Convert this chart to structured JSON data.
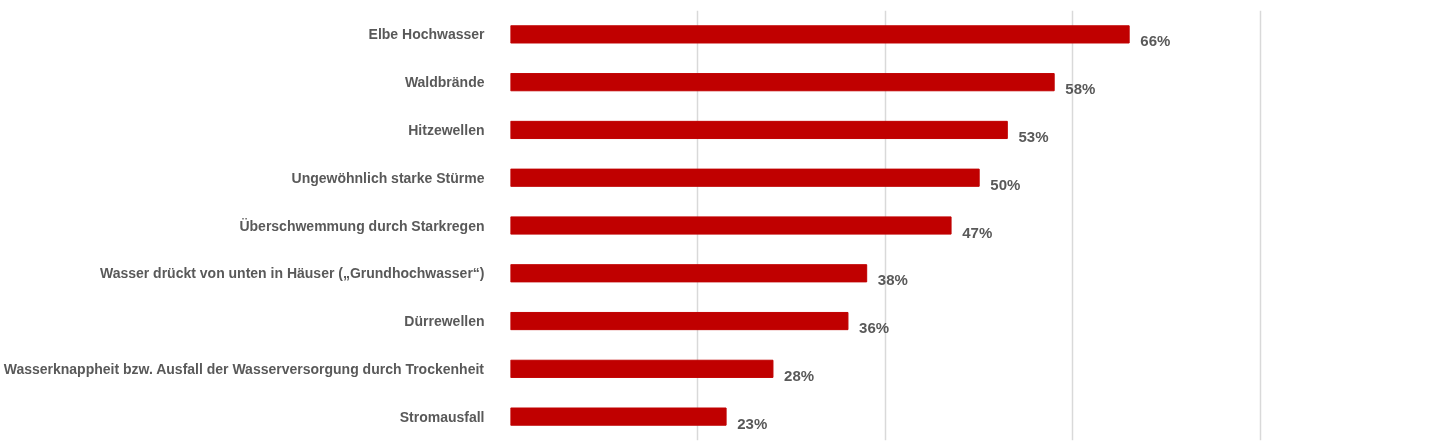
{
  "chart_data": {
    "type": "bar",
    "orientation": "horizontal",
    "categories": [
      "Elbe Hochwasser",
      "Waldbrände",
      "Hitzewellen",
      "Ungewöhnlich starke Stürme",
      "Überschwemmung durch Starkregen",
      "Wasser drückt von unten in Häuser („Grundhochwasser“)",
      "Dürrewellen",
      "Wasserknappheit bzw. Ausfall der Wasserversorgung durch Trockenheit",
      "Stromausfall"
    ],
    "values": [
      66,
      58,
      53,
      50,
      47,
      38,
      36,
      28,
      23
    ],
    "value_labels": [
      "66%",
      "58%",
      "53%",
      "50%",
      "47%",
      "38%",
      "36%",
      "28%",
      "23%"
    ],
    "color": "#c00000",
    "grid": "x",
    "tick_labels": "y"
  }
}
